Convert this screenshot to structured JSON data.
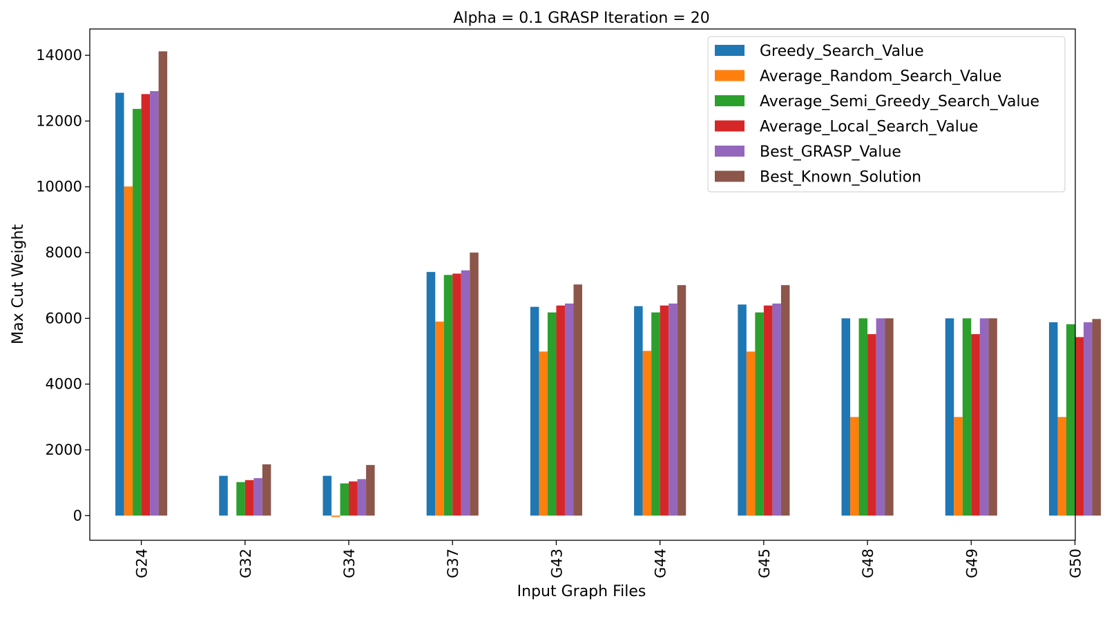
{
  "chart_data": {
    "type": "bar",
    "title": "Alpha = 0.1  GRASP Iteration = 20",
    "xlabel": "Input Graph Files",
    "ylabel": "Max Cut Weight",
    "ylim": [
      -750,
      14800
    ],
    "yticks": [
      0,
      2000,
      4000,
      6000,
      8000,
      10000,
      12000,
      14000
    ],
    "grid": false,
    "legend_position": "top-right",
    "categories": [
      "G24",
      "G32",
      "G34",
      "G37",
      "G43",
      "G44",
      "G45",
      "G48",
      "G49",
      "G50"
    ],
    "series": [
      {
        "name": "Greedy_Search_Value",
        "color": "#1f77b4",
        "values": [
          12860,
          1210,
          1210,
          7410,
          6350,
          6370,
          6420,
          6000,
          6000,
          5880
        ]
      },
      {
        "name": "Average_Random_Search_Value",
        "color": "#ff7f0e",
        "values": [
          10010,
          0,
          -40,
          5900,
          4990,
          5010,
          4990,
          3000,
          3000,
          3000
        ]
      },
      {
        "name": "Average_Semi_Greedy_Search_Value",
        "color": "#2ca02c",
        "values": [
          12370,
          1020,
          980,
          7320,
          6180,
          6180,
          6180,
          6000,
          6000,
          5820
        ]
      },
      {
        "name": "Average_Local_Search_Value",
        "color": "#d62728",
        "values": [
          12820,
          1080,
          1040,
          7360,
          6390,
          6390,
          6390,
          5520,
          5520,
          5430
        ]
      },
      {
        "name": "Best_GRASP_Value",
        "color": "#9467bd",
        "values": [
          12910,
          1140,
          1110,
          7460,
          6450,
          6450,
          6450,
          6000,
          6000,
          5880
        ]
      },
      {
        "name": "Best_Known_Solution",
        "color": "#8c564b",
        "values": [
          14120,
          1560,
          1540,
          8000,
          7030,
          7010,
          7010,
          6000,
          6000,
          5980
        ]
      }
    ]
  }
}
